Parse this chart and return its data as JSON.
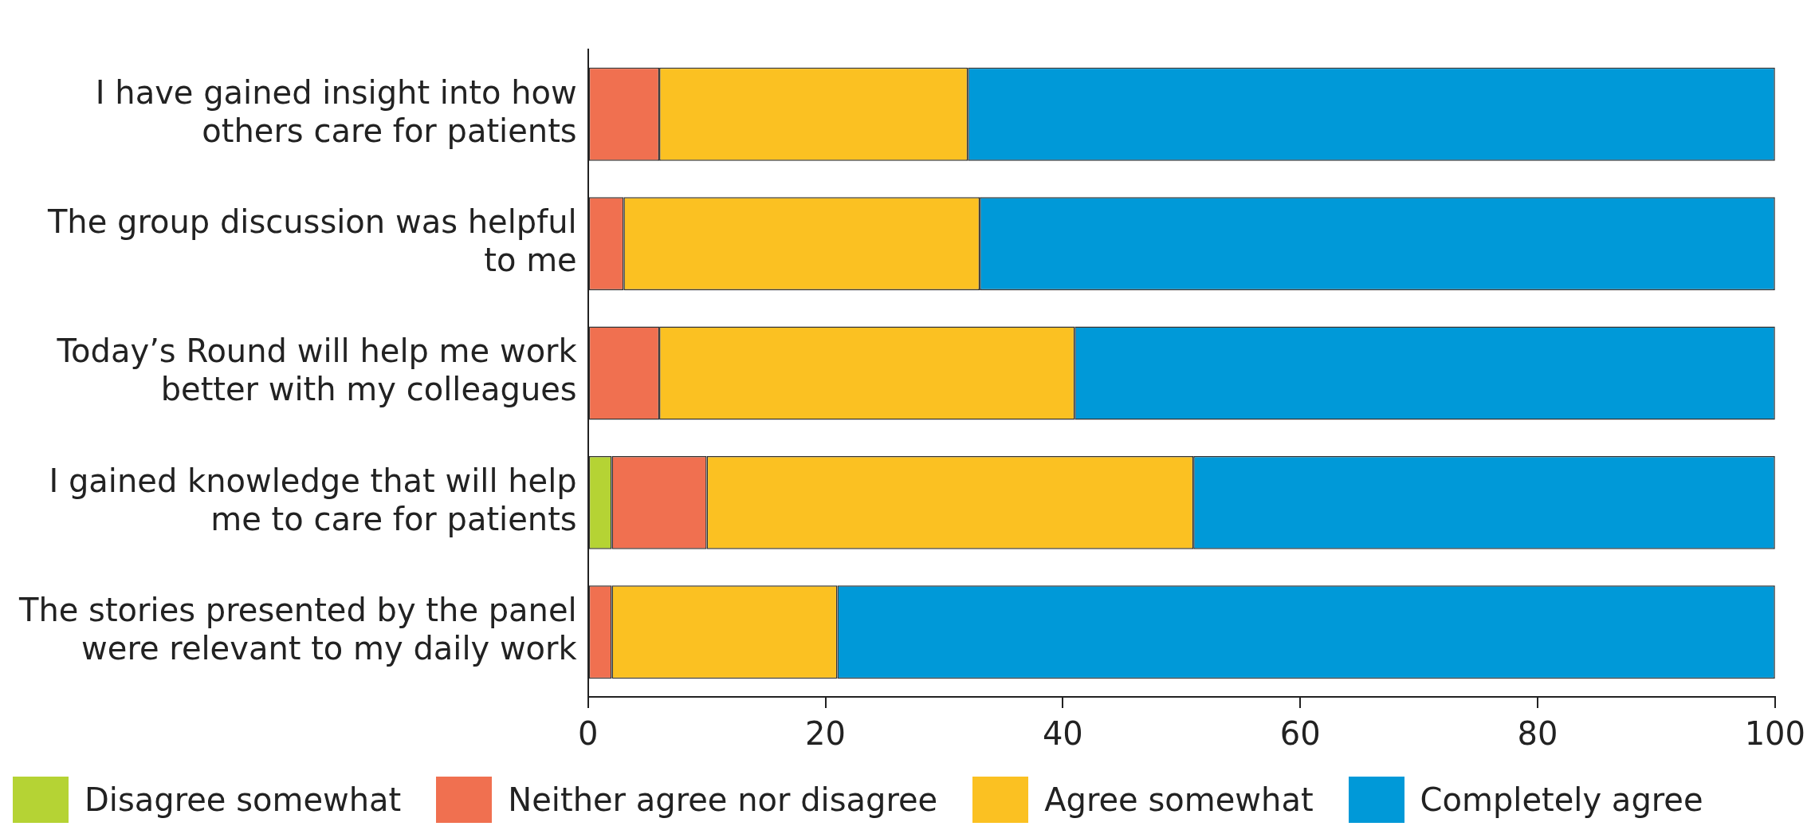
{
  "chart_data": {
    "type": "bar",
    "orientation": "horizontal",
    "stacked": true,
    "categories": [
      "I have gained insight into how others care for patients",
      "The group discussion was helpful to me",
      "Today’s Round will help me work better with my colleagues",
      "I gained knowledge that will help me to care for patients",
      "The stories presented by the panel were relevant to my daily work"
    ],
    "series": [
      {
        "name": "Disagree somewhat",
        "color": "#b5d334",
        "values": [
          0,
          0,
          0,
          2,
          0
        ]
      },
      {
        "name": "Neither agree nor disagree",
        "color": "#f07050",
        "values": [
          6,
          3,
          6,
          8,
          2
        ]
      },
      {
        "name": "Agree somewhat",
        "color": "#fbc122",
        "values": [
          26,
          30,
          35,
          41,
          19
        ]
      },
      {
        "name": "Completely agree",
        "color": "#0099d8",
        "values": [
          68,
          67,
          59,
          49,
          79
        ]
      }
    ],
    "xlim": [
      0,
      100
    ],
    "xticks": [
      0,
      20,
      40,
      60,
      80,
      100
    ],
    "grid": false,
    "legend": "bottom"
  }
}
